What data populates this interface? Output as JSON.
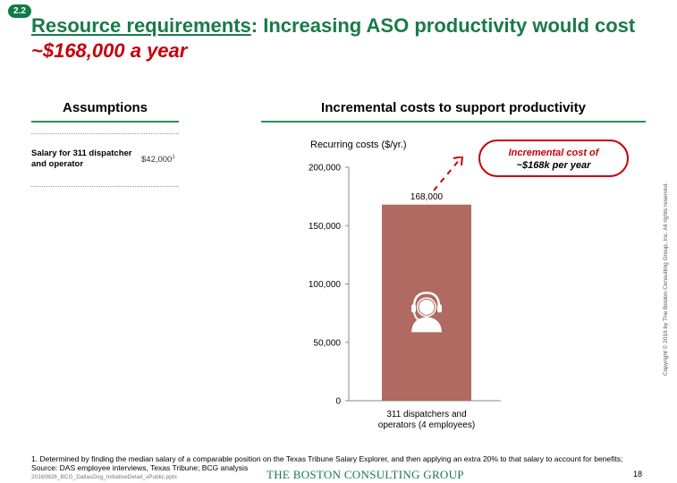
{
  "badge": "2.2",
  "title": {
    "part1": "Resource requirements",
    "part2": ": Increasing ASO productivity would cost ",
    "part3": "~$168,000 a year"
  },
  "assumptions": {
    "heading": "Assumptions",
    "label": "Salary for 311 dispatcher and operator",
    "value": "$42,000",
    "value_footnote_marker": "1"
  },
  "costs_heading": "Incremental costs to support productivity",
  "callout": {
    "line1": "Incremental cost of",
    "line2": "~$168k per year"
  },
  "chart_data": {
    "type": "bar",
    "title": "Recurring costs ($/yr.)",
    "categories": [
      "311 dispatchers and operators (4 employees)"
    ],
    "category_lines": [
      "311 dispatchers and",
      "operators (4 employees)"
    ],
    "values": [
      168000
    ],
    "data_labels": [
      "168,000"
    ],
    "ylim": [
      0,
      200000
    ],
    "yticks": [
      0,
      50000,
      100000,
      150000,
      200000
    ],
    "ytick_labels": [
      "0",
      "50,000",
      "100,000",
      "150,000",
      "200,000"
    ],
    "bar_color": "#b06a62",
    "icon": "headset-person-icon"
  },
  "footnote": "1. Determined by finding the median salary of a comparable position on the Texas Tribune Salary Explorer, and then applying an extra 20% to that salary to account for benefits; Source: DAS employee interviews, Texas Tribune; BCG analysis",
  "filename": "20160826_BCG_DallasDog_InitiativeDetail_vPublic.pptx",
  "logo": "THE BOSTON CONSULTING GROUP",
  "page_number": "18",
  "copyright": "Copyright © 2016 by The Boston Consulting Group, Inc. All rights reserved.",
  "colors": {
    "accent_green": "#1a7a4a",
    "accent_red": "#c4000b"
  }
}
